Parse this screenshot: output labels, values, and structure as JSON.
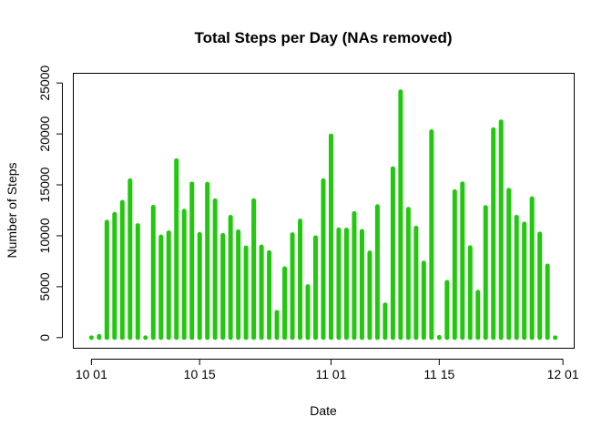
{
  "chart_data": {
    "type": "bar",
    "title": "Total Steps per Day (NAs removed)",
    "xlabel": "Date",
    "ylabel": "Number of Steps",
    "bar_color": "#22c80e",
    "grid": false,
    "ylim": [
      0,
      25000
    ],
    "y_ticks": [
      0,
      5000,
      10000,
      15000,
      20000,
      25000
    ],
    "x_range": [
      "2012-10-01",
      "2012-11-30"
    ],
    "x_ticks": [
      {
        "date": "2012-10-01",
        "label": "10 01"
      },
      {
        "date": "2012-10-15",
        "label": "10 15"
      },
      {
        "date": "2012-11-01",
        "label": "11 01"
      },
      {
        "date": "2012-11-15",
        "label": "11 15"
      },
      {
        "date": "2012-12-01",
        "label": "12 01"
      }
    ],
    "x": [
      "2012-10-01",
      "2012-10-02",
      "2012-10-03",
      "2012-10-04",
      "2012-10-05",
      "2012-10-06",
      "2012-10-07",
      "2012-10-08",
      "2012-10-09",
      "2012-10-10",
      "2012-10-11",
      "2012-10-12",
      "2012-10-13",
      "2012-10-14",
      "2012-10-15",
      "2012-10-16",
      "2012-10-17",
      "2012-10-18",
      "2012-10-19",
      "2012-10-20",
      "2012-10-21",
      "2012-10-22",
      "2012-10-23",
      "2012-10-24",
      "2012-10-25",
      "2012-10-26",
      "2012-10-27",
      "2012-10-28",
      "2012-10-29",
      "2012-10-30",
      "2012-10-31",
      "2012-11-01",
      "2012-11-02",
      "2012-11-03",
      "2012-11-04",
      "2012-11-05",
      "2012-11-06",
      "2012-11-07",
      "2012-11-08",
      "2012-11-09",
      "2012-11-10",
      "2012-11-11",
      "2012-11-12",
      "2012-11-13",
      "2012-11-14",
      "2012-11-15",
      "2012-11-16",
      "2012-11-17",
      "2012-11-18",
      "2012-11-19",
      "2012-11-20",
      "2012-11-21",
      "2012-11-22",
      "2012-11-23",
      "2012-11-24",
      "2012-11-25",
      "2012-11-26",
      "2012-11-27",
      "2012-11-28",
      "2012-11-29",
      "2012-11-30"
    ],
    "values": [
      0,
      126,
      11352,
      12116,
      13294,
      15420,
      11015,
      0,
      12811,
      9900,
      10304,
      17382,
      12426,
      15098,
      10139,
      15084,
      13452,
      10056,
      11829,
      10395,
      8821,
      13460,
      8918,
      8355,
      2492,
      6778,
      10119,
      11458,
      5018,
      9819,
      15414,
      19813,
      10600,
      10571,
      12199,
      10439,
      8334,
      12883,
      3219,
      16595,
      24150,
      12608,
      10765,
      7336,
      20236,
      41,
      5441,
      14339,
      15110,
      8841,
      4472,
      12787,
      20427,
      21194,
      14478,
      11834,
      11162,
      13646,
      10183,
      7047,
      0
    ]
  }
}
